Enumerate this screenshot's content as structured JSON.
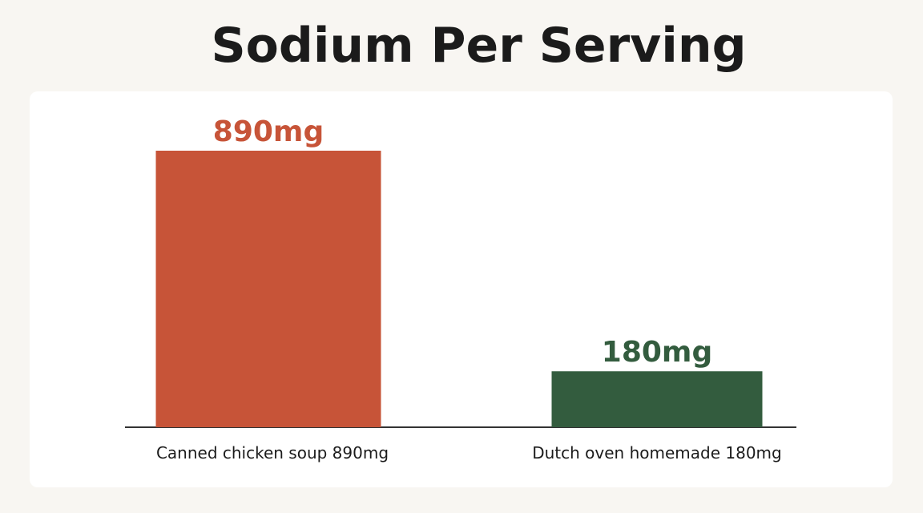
{
  "chart_data": {
    "type": "bar",
    "title": "Sodium Per Serving",
    "categories": [
      "Canned chicken soup 890mg",
      "Dutch oven homemade 180mg"
    ],
    "values": [
      890,
      180
    ],
    "value_labels": [
      "890mg",
      "180mg"
    ],
    "colors": [
      "#c75438",
      "#335c3e"
    ],
    "ylim": [
      0,
      1000
    ],
    "grid": false,
    "legend": "none"
  }
}
